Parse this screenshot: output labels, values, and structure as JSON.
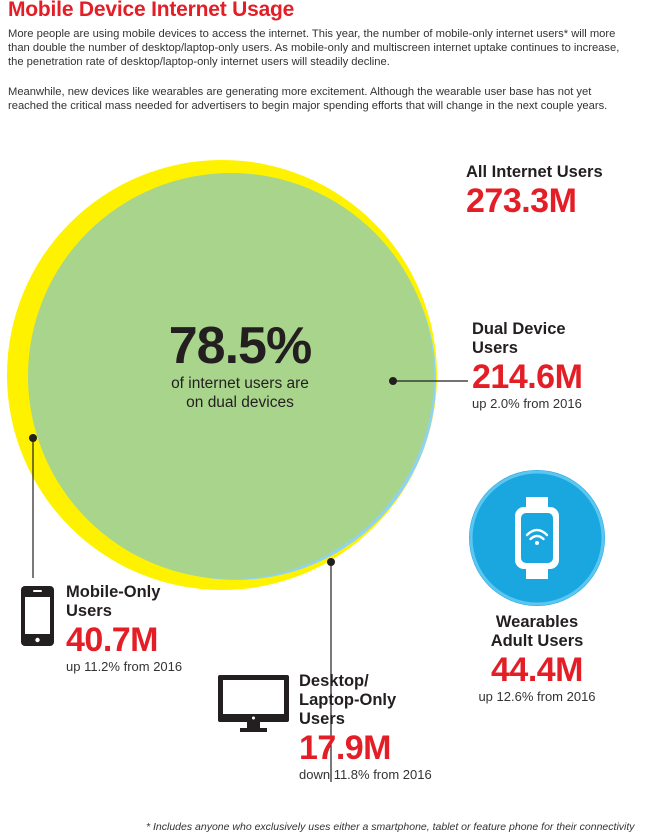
{
  "header": {
    "title": "Mobile Device Internet Usage",
    "intro_1": "More people are using mobile devices to access the internet. This year, the number of mobile-only internet users* will more than double the number of desktop/laptop-only users. As mobile-only and multiscreen internet uptake continues to increase, the penetration rate of desktop/laptop-only internet users will steadily decline.",
    "intro_2": "Meanwhile, new devices like wearables are generating more excitement. Although the wearable user base has not yet reached the critical mass needed for advertisers to begin major spending efforts that will change in the next couple years."
  },
  "center": {
    "percent": "78.5%",
    "caption_line1": "of internet users are",
    "caption_line2": "on dual devices"
  },
  "all_users": {
    "label": "All Internet Users",
    "value": "273.3M"
  },
  "dual_device": {
    "label_line1": "Dual Device",
    "label_line2": "Users",
    "value": "214.6M",
    "change": "up 2.0% from 2016"
  },
  "mobile_only": {
    "label_line1": "Mobile-Only",
    "label_line2": "Users",
    "value": "40.7M",
    "change": "up 11.2% from 2016",
    "icon": "smartphone-icon"
  },
  "desktop_only": {
    "label_line1": "Desktop/",
    "label_line2": "Laptop-Only",
    "label_line3": "Users",
    "value": "17.9M",
    "change": "down 11.8% from 2016",
    "icon": "desktop-monitor-icon"
  },
  "wearables": {
    "label_line1": "Wearables",
    "label_line2": "Adult Users",
    "value": "44.4M",
    "change": "up 12.6% from 2016",
    "icon": "smartwatch-wifi-icon"
  },
  "footnote": "* Includes anyone who exclusively uses either a smartphone, tablet or feature phone for their connectivity",
  "colors": {
    "accent_red": "#e41e26",
    "yellow": "#fff200",
    "light_blue": "#8fd3f4",
    "green": "#a8d58b",
    "wearable_blue": "#1aa7e0"
  }
}
